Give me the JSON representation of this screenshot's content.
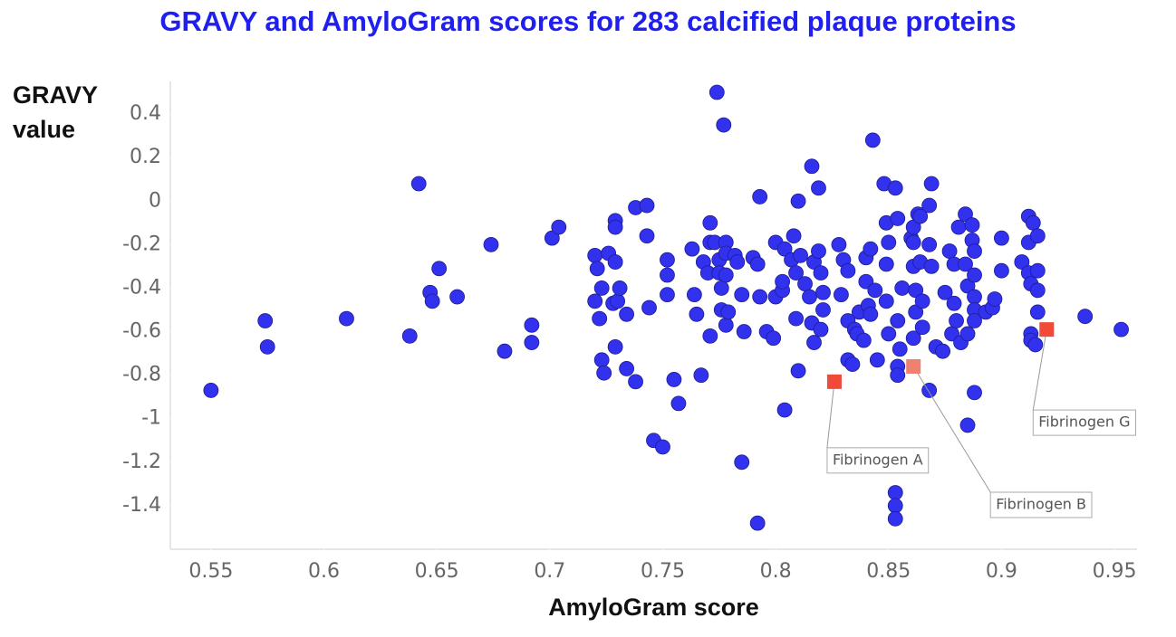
{
  "chart_data": {
    "type": "scatter",
    "title": "GRAVY and AmyloGram scores for 283 calcified plaque proteins",
    "xlabel": "AmyloGram score",
    "ylabel": "GRAVY value",
    "xlim": [
      0.532,
      0.96
    ],
    "ylim": [
      -1.6,
      0.55
    ],
    "xticks": [
      0.55,
      0.6,
      0.65,
      0.7,
      0.75,
      0.8,
      0.85,
      0.9,
      0.95
    ],
    "yticks": [
      0.4,
      0.2,
      0,
      -0.2,
      -0.4,
      -0.6,
      -0.8,
      -1,
      -1.2,
      -1.4
    ],
    "color": "#3232ee",
    "x": [
      0.55,
      0.574,
      0.575,
      0.61,
      0.638,
      0.642,
      0.647,
      0.648,
      0.651,
      0.659,
      0.674,
      0.68,
      0.692,
      0.692,
      0.701,
      0.704,
      0.72,
      0.721,
      0.72,
      0.722,
      0.723,
      0.723,
      0.724,
      0.726,
      0.728,
      0.729,
      0.729,
      0.729,
      0.73,
      0.729,
      0.731,
      0.734,
      0.734,
      0.738,
      0.738,
      0.743,
      0.743,
      0.744,
      0.746,
      0.75,
      0.752,
      0.752,
      0.752,
      0.755,
      0.757,
      0.763,
      0.764,
      0.765,
      0.767,
      0.768,
      0.77,
      0.771,
      0.771,
      0.771,
      0.773,
      0.774,
      0.775,
      0.775,
      0.776,
      0.776,
      0.777,
      0.778,
      0.778,
      0.778,
      0.778,
      0.779,
      0.782,
      0.783,
      0.785,
      0.786,
      0.785,
      0.79,
      0.792,
      0.792,
      0.793,
      0.793,
      0.796,
      0.799,
      0.8,
      0.8,
      0.803,
      0.803,
      0.804,
      0.804,
      0.807,
      0.808,
      0.809,
      0.809,
      0.81,
      0.81,
      0.811,
      0.813,
      0.815,
      0.816,
      0.816,
      0.817,
      0.817,
      0.819,
      0.819,
      0.82,
      0.821,
      0.821,
      0.82,
      0.828,
      0.829,
      0.83,
      0.832,
      0.832,
      0.832,
      0.834,
      0.835,
      0.836,
      0.837,
      0.839,
      0.84,
      0.84,
      0.841,
      0.842,
      0.842,
      0.843,
      0.844,
      0.845,
      0.848,
      0.849,
      0.849,
      0.849,
      0.85,
      0.85,
      0.853,
      0.853,
      0.853,
      0.853,
      0.854,
      0.854,
      0.854,
      0.854,
      0.855,
      0.856,
      0.86,
      0.861,
      0.861,
      0.861,
      0.862,
      0.862,
      0.861,
      0.863,
      0.864,
      0.864,
      0.865,
      0.865,
      0.868,
      0.868,
      0.868,
      0.869,
      0.869,
      0.871,
      0.874,
      0.875,
      0.877,
      0.878,
      0.879,
      0.879,
      0.88,
      0.881,
      0.882,
      0.884,
      0.885,
      0.884,
      0.885,
      0.885,
      0.887,
      0.887,
      0.888,
      0.888,
      0.888,
      0.888,
      0.888,
      0.888,
      0.893,
      0.896,
      0.897,
      0.9,
      0.9,
      0.909,
      0.912,
      0.912,
      0.912,
      0.913,
      0.913,
      0.913,
      0.914,
      0.916,
      0.916,
      0.915,
      0.916,
      0.916,
      0.937,
      0.953
    ],
    "y": [
      -0.87,
      -0.55,
      -0.67,
      -0.54,
      -0.62,
      0.08,
      -0.42,
      -0.46,
      -0.31,
      -0.44,
      -0.2,
      -0.69,
      -0.57,
      -0.65,
      -0.17,
      -0.12,
      -0.25,
      -0.31,
      -0.46,
      -0.54,
      -0.4,
      -0.73,
      -0.79,
      -0.24,
      -0.47,
      -0.09,
      -0.12,
      -0.28,
      -0.46,
      -0.67,
      -0.4,
      -0.52,
      -0.77,
      -0.83,
      -0.03,
      -0.02,
      -0.16,
      -0.49,
      -1.1,
      -1.13,
      -0.27,
      -0.34,
      -0.43,
      -0.82,
      -0.93,
      -0.22,
      -0.43,
      -0.52,
      -0.8,
      -0.28,
      -0.33,
      -0.1,
      -0.19,
      -0.62,
      -0.19,
      0.5,
      -0.27,
      -0.33,
      -0.4,
      -0.5,
      0.35,
      -0.19,
      -0.24,
      -0.34,
      -0.57,
      -0.51,
      -0.25,
      -0.28,
      -0.43,
      -0.6,
      -1.2,
      -0.26,
      -1.48,
      -0.29,
      0.02,
      -0.44,
      -0.6,
      -0.63,
      -0.44,
      -0.19,
      -0.41,
      -0.37,
      -0.96,
      -0.22,
      -0.27,
      -0.16,
      -0.33,
      -0.54,
      -0.78,
      0,
      -0.25,
      -0.38,
      -0.44,
      0.16,
      -0.56,
      -0.65,
      -0.28,
      0.06,
      -0.23,
      -0.33,
      -0.42,
      -0.5,
      -0.59,
      -0.2,
      -0.43,
      -0.27,
      -0.32,
      -0.55,
      -0.73,
      -0.75,
      -0.59,
      -0.61,
      -0.51,
      -0.64,
      -0.26,
      -0.37,
      -0.48,
      -0.52,
      -0.22,
      0.28,
      -0.41,
      -0.73,
      0.08,
      -0.29,
      -0.1,
      -0.46,
      -0.61,
      -0.19,
      -1.34,
      -1.4,
      -1.46,
      0.06,
      -0.08,
      -0.55,
      -0.76,
      -0.8,
      -0.68,
      -0.4,
      -0.17,
      -0.12,
      -0.19,
      -0.3,
      -0.41,
      -0.51,
      -0.63,
      -0.06,
      -0.07,
      -0.28,
      -0.46,
      -0.58,
      -0.87,
      -0.2,
      -0.02,
      -0.3,
      0.08,
      -0.67,
      -0.69,
      -0.42,
      -0.23,
      -0.61,
      -0.29,
      -0.47,
      -0.55,
      -0.12,
      -0.65,
      -0.06,
      -1.03,
      -0.29,
      -0.39,
      -0.61,
      -0.11,
      -0.18,
      -0.23,
      -0.34,
      -0.44,
      -0.5,
      -0.88,
      -0.55,
      -0.51,
      -0.49,
      -0.45,
      -0.32,
      -0.17,
      -0.28,
      -0.33,
      -0.07,
      -0.19,
      -0.38,
      -0.61,
      -0.64,
      -0.1,
      -0.32,
      -0.41,
      -0.66,
      -0.16,
      -0.51,
      -0.53,
      -0.59
    ],
    "highlights": [
      {
        "label": "Fibrinogen A",
        "x": 0.826,
        "y": -0.83,
        "color": "#f04a3a"
      },
      {
        "label": "Fibrinogen B",
        "x": 0.861,
        "y": -0.76,
        "color": "#f08070"
      },
      {
        "label": "Fibrinogen G",
        "x": 0.92,
        "y": -0.59,
        "color": "#f04a3a"
      }
    ]
  }
}
